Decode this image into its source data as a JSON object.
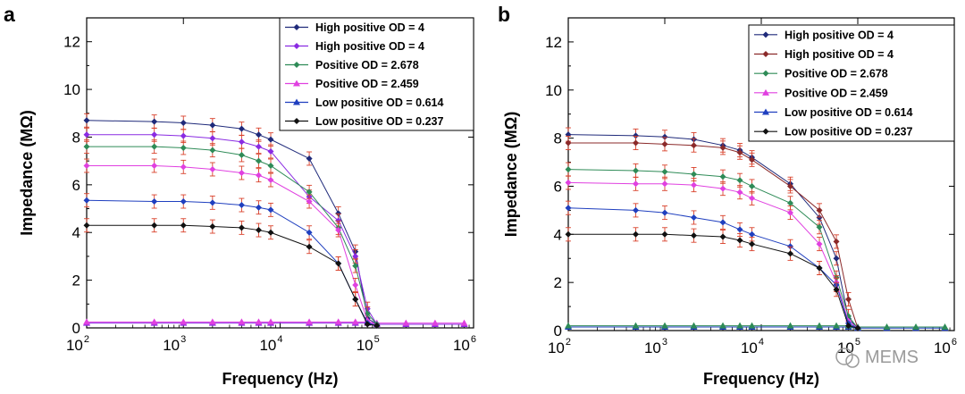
{
  "chart_data": [
    {
      "panel": "a",
      "type": "line",
      "x_scale": "log",
      "xlim": [
        100,
        1000000
      ],
      "ylim": [
        0,
        13
      ],
      "xlabel": "Frequency (Hz)",
      "ylabel": "Impedance (MΩ)",
      "x_ticks": [
        {
          "base": "10",
          "exp": "2"
        },
        {
          "base": "10",
          "exp": "3"
        },
        {
          "base": "10",
          "exp": "4"
        },
        {
          "base": "10",
          "exp": "5"
        },
        {
          "base": "10",
          "exp": "6"
        }
      ],
      "y_ticks": [
        "0",
        "2",
        "4",
        "6",
        "8",
        "10",
        "12"
      ],
      "y_tick_values": [
        0,
        2,
        4,
        6,
        8,
        10,
        12
      ],
      "grid": false,
      "legend_position": "top-right",
      "x": [
        100,
        500,
        1000,
        2000,
        4000,
        6000,
        8000,
        20000,
        40000,
        60000,
        80000,
        100000
      ],
      "series": [
        {
          "name": "High positive OD = 4",
          "color": "#1f2a7a",
          "values": [
            8.7,
            8.65,
            8.6,
            8.5,
            8.35,
            8.1,
            7.9,
            7.1,
            4.8,
            3.2,
            0.4,
            0.15
          ]
        },
        {
          "name": "High positive OD = 4",
          "color": "#8a2be2",
          "values": [
            8.1,
            8.1,
            8.05,
            7.95,
            7.8,
            7.6,
            7.4,
            5.5,
            4.5,
            3.0,
            0.8,
            0.15
          ]
        },
        {
          "name": "Positive OD = 2.678",
          "color": "#2e8b57",
          "values": [
            7.6,
            7.6,
            7.55,
            7.45,
            7.25,
            7.0,
            6.8,
            5.7,
            4.2,
            2.6,
            0.6,
            0.15
          ]
        },
        {
          "name": "Positive OD = 2.459",
          "color": "#e040e0",
          "values": [
            6.8,
            6.8,
            6.75,
            6.65,
            6.5,
            6.4,
            6.2,
            5.3,
            4.1,
            1.8,
            0.3,
            0.1
          ]
        },
        {
          "name": "Low positive OD = 0.614",
          "color": "#1f3fbf",
          "values": [
            5.35,
            5.3,
            5.3,
            5.25,
            5.15,
            5.05,
            4.95,
            4.0,
            2.7,
            1.2,
            0.2,
            0.1
          ]
        },
        {
          "name": "Low positive OD = 0.237",
          "color": "#111111",
          "values": [
            4.3,
            4.3,
            4.3,
            4.25,
            4.2,
            4.1,
            4.0,
            3.4,
            2.7,
            1.2,
            0.15,
            0.1
          ]
        }
      ],
      "baseline_series": {
        "x": [
          100,
          500,
          1000,
          2000,
          4000,
          6000,
          8000,
          20000,
          40000,
          60000,
          80000,
          100000,
          200000,
          400000,
          800000
        ],
        "values": [
          0.2,
          0.2,
          0.2,
          0.2,
          0.2,
          0.2,
          0.2,
          0.2,
          0.2,
          0.2,
          0.2,
          0.15,
          0.15,
          0.15,
          0.15
        ],
        "colors": [
          "#8a2be2",
          "#e040e0"
        ]
      }
    },
    {
      "panel": "b",
      "type": "line",
      "x_scale": "log",
      "xlim": [
        100,
        1000000
      ],
      "ylim": [
        0,
        13
      ],
      "xlabel": "Frequency (Hz)",
      "ylabel": "Impedance (MΩ)",
      "x_ticks": [
        {
          "base": "10",
          "exp": "2"
        },
        {
          "base": "10",
          "exp": "3"
        },
        {
          "base": "10",
          "exp": "4"
        },
        {
          "base": "10",
          "exp": "5"
        },
        {
          "base": "10",
          "exp": "6"
        }
      ],
      "y_ticks": [
        "0",
        "2",
        "4",
        "6",
        "8",
        "10",
        "12"
      ],
      "y_tick_values": [
        0,
        2,
        4,
        6,
        8,
        10,
        12
      ],
      "grid": false,
      "legend_position": "top-right",
      "x": [
        100,
        500,
        1000,
        2000,
        4000,
        6000,
        8000,
        20000,
        40000,
        60000,
        80000,
        100000
      ],
      "series": [
        {
          "name": "High positive OD = 4",
          "color": "#1f2a7a",
          "values": [
            8.15,
            8.1,
            8.05,
            7.95,
            7.7,
            7.5,
            7.2,
            6.1,
            4.7,
            3.0,
            0.5,
            0.1
          ]
        },
        {
          "name": "High positive OD = 4",
          "color": "#8b2a2a",
          "values": [
            7.8,
            7.8,
            7.75,
            7.7,
            7.6,
            7.4,
            7.1,
            6.0,
            5.0,
            3.7,
            1.3,
            0.1
          ]
        },
        {
          "name": "Positive OD = 2.678",
          "color": "#2e8b57",
          "values": [
            6.7,
            6.65,
            6.6,
            6.5,
            6.4,
            6.25,
            6.0,
            5.3,
            4.3,
            2.2,
            0.6,
            0.1
          ]
        },
        {
          "name": "Positive OD = 2.459",
          "color": "#e040e0",
          "values": [
            6.15,
            6.1,
            6.1,
            6.05,
            5.9,
            5.75,
            5.5,
            4.9,
            3.6,
            2.0,
            0.4,
            0.1
          ]
        },
        {
          "name": "Low positive OD = 0.614",
          "color": "#1f3fbf",
          "values": [
            5.1,
            5.0,
            4.9,
            4.7,
            4.5,
            4.2,
            4.0,
            3.5,
            2.6,
            1.9,
            0.3,
            0.1
          ]
        },
        {
          "name": "Low positive OD = 0.237",
          "color": "#111111",
          "values": [
            4.0,
            4.0,
            4.0,
            3.95,
            3.9,
            3.75,
            3.6,
            3.2,
            2.6,
            1.7,
            0.2,
            0.1
          ]
        }
      ],
      "baseline_series": {
        "x": [
          100,
          500,
          1000,
          2000,
          4000,
          6000,
          8000,
          20000,
          40000,
          60000,
          80000,
          100000,
          200000,
          400000,
          800000
        ],
        "values": [
          0.15,
          0.15,
          0.15,
          0.15,
          0.15,
          0.15,
          0.15,
          0.15,
          0.15,
          0.15,
          0.15,
          0.1,
          0.1,
          0.1,
          0.1
        ],
        "colors": [
          "#1f3fbf",
          "#2e8b57"
        ]
      }
    }
  ],
  "watermark": {
    "text": "MEMS"
  }
}
